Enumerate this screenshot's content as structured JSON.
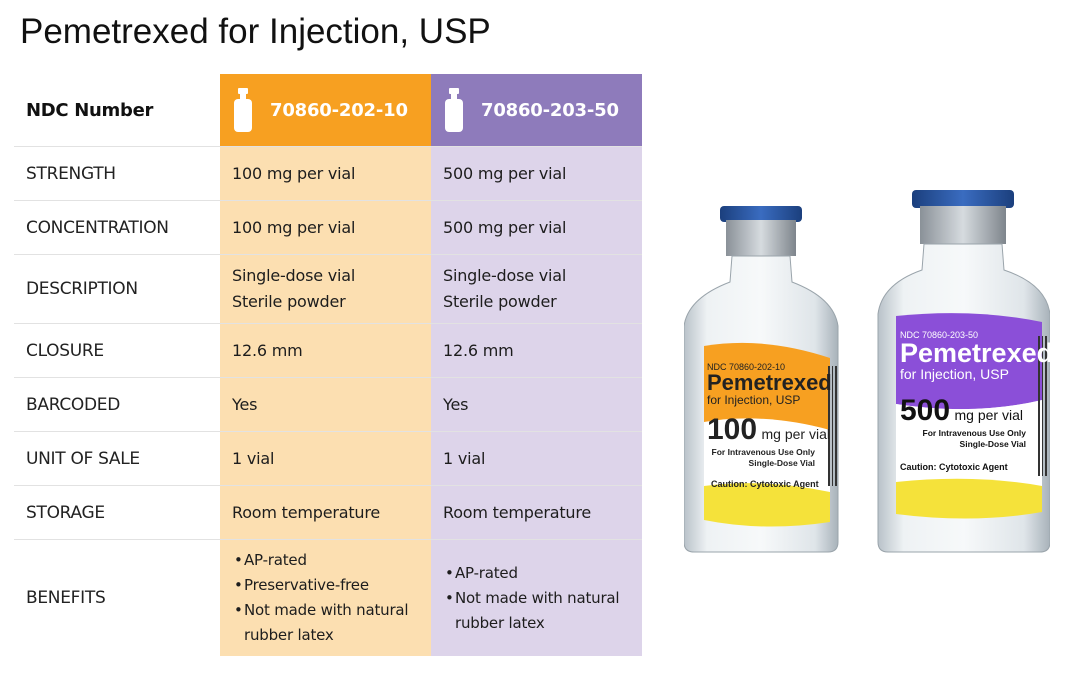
{
  "page": {
    "title": "Pemetrexed for Injection, USP"
  },
  "table": {
    "header": {
      "label": "NDC Number",
      "ndc_1": "70860-202-10",
      "ndc_2": "70860-203-50"
    },
    "rows": [
      {
        "label": "STRENGTH",
        "v1": "100 mg per vial",
        "v2": "500 mg per vial"
      },
      {
        "label": "CONCENTRATION",
        "v1": "100 mg per vial",
        "v2": "500 mg per vial"
      },
      {
        "label": "DESCRIPTION",
        "v1": [
          "Single-dose vial",
          "Sterile powder"
        ],
        "v2": [
          "Single-dose vial",
          "Sterile powder"
        ]
      },
      {
        "label": "CLOSURE",
        "v1": "12.6 mm",
        "v2": "12.6 mm"
      },
      {
        "label": "BARCODED",
        "v1": "Yes",
        "v2": "Yes"
      },
      {
        "label": "UNIT OF SALE",
        "v1": "1 vial",
        "v2": "1 vial"
      },
      {
        "label": "STORAGE",
        "v1": "Room temperature",
        "v2": "Room temperature"
      },
      {
        "label": "BENEFITS",
        "v1": [
          "AP-rated",
          "Preservative-free",
          "Not made with natural rubber latex"
        ],
        "v2": [
          "AP-rated",
          "Not made with natural rubber latex"
        ]
      }
    ]
  },
  "vials": [
    {
      "ndc": "NDC 70860-202-10",
      "name": "Pemetrexed",
      "subtitle": "for Injection, USP",
      "strength_num": "100",
      "strength_unit": "mg per vial",
      "use_line1": "For Intravenous Use Only",
      "use_line2": "Single-Dose Vial",
      "caution": "Caution: Cytotoxic Agent"
    },
    {
      "ndc": "NDC 70860-203-50",
      "name": "Pemetrexed",
      "subtitle": "for Injection, USP",
      "strength_num": "500",
      "strength_unit": "mg per vial",
      "use_line1": "For Intravenous Use Only",
      "use_line2": "Single-Dose Vial",
      "caution": "Caution: Cytotoxic Agent"
    }
  ],
  "colors": {
    "orange": "#f7a021",
    "orange_light": "#fcdfb1",
    "purple": "#8e7bbb",
    "purple_light": "#ddd4ea",
    "cap_blue": "#2a5aa8",
    "label_yellow": "#f5e23a",
    "label_purple": "#8b4fd8"
  }
}
